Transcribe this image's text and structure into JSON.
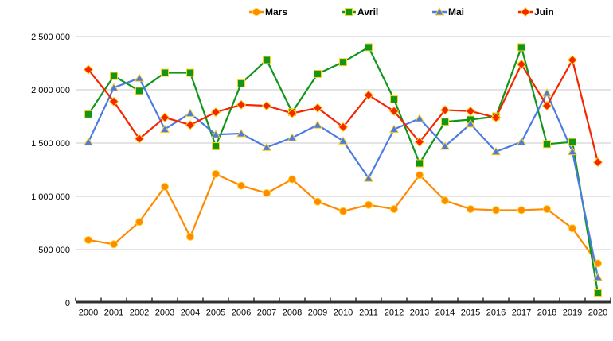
{
  "chart_data": {
    "type": "line",
    "title": "",
    "xlabel": "",
    "ylabel": "",
    "x": [
      2000,
      2001,
      2002,
      2003,
      2004,
      2005,
      2006,
      2007,
      2008,
      2009,
      2010,
      2011,
      2012,
      2013,
      2014,
      2015,
      2016,
      2017,
      2018,
      2019,
      2020
    ],
    "series": [
      {
        "name": "Mars",
        "color": "#FF8A00",
        "marker": "circle",
        "values": [
          590000,
          550000,
          760000,
          1090000,
          620000,
          1210000,
          1100000,
          1030000,
          1160000,
          950000,
          860000,
          920000,
          880000,
          1200000,
          960000,
          880000,
          870000,
          870000,
          880000,
          700000,
          370000
        ]
      },
      {
        "name": "Avril",
        "color": "#109618",
        "marker": "square",
        "values": [
          1770000,
          2130000,
          1990000,
          2160000,
          2160000,
          1470000,
          2060000,
          2280000,
          1790000,
          2150000,
          2260000,
          2400000,
          1910000,
          1310000,
          1700000,
          1720000,
          1750000,
          2400000,
          1490000,
          1510000,
          90000
        ]
      },
      {
        "name": "Mai",
        "color": "#4C7BE1",
        "marker": "triangle",
        "values": [
          1510000,
          2020000,
          2110000,
          1630000,
          1780000,
          1580000,
          1590000,
          1460000,
          1550000,
          1670000,
          1520000,
          1170000,
          1630000,
          1730000,
          1470000,
          1680000,
          1420000,
          1510000,
          1970000,
          1420000,
          240000
        ]
      },
      {
        "name": "Juin",
        "color": "#F52500",
        "marker": "diamond",
        "values": [
          2190000,
          1890000,
          1540000,
          1740000,
          1670000,
          1790000,
          1860000,
          1850000,
          1780000,
          1830000,
          1650000,
          1950000,
          1800000,
          1510000,
          1810000,
          1800000,
          1740000,
          2240000,
          1850000,
          2280000,
          1320000
        ]
      }
    ],
    "ylim": [
      0,
      2500000
    ],
    "ytick_step": 500000,
    "ytick_labels": [
      "0",
      "500 000",
      "1 000 000",
      "1 500 000",
      "2 000 000",
      "2 500 000"
    ],
    "grid": true,
    "legend_position": "top"
  },
  "style": {
    "background": "#FFFFFF",
    "grid_color": "#C9C9C9",
    "axis_color": "#303030",
    "marker_border": "#FFD21E",
    "label_color": "#000000"
  },
  "legend": {
    "items": [
      {
        "label": "Mars"
      },
      {
        "label": "Avril"
      },
      {
        "label": "Mai"
      },
      {
        "label": "Juin"
      }
    ]
  }
}
